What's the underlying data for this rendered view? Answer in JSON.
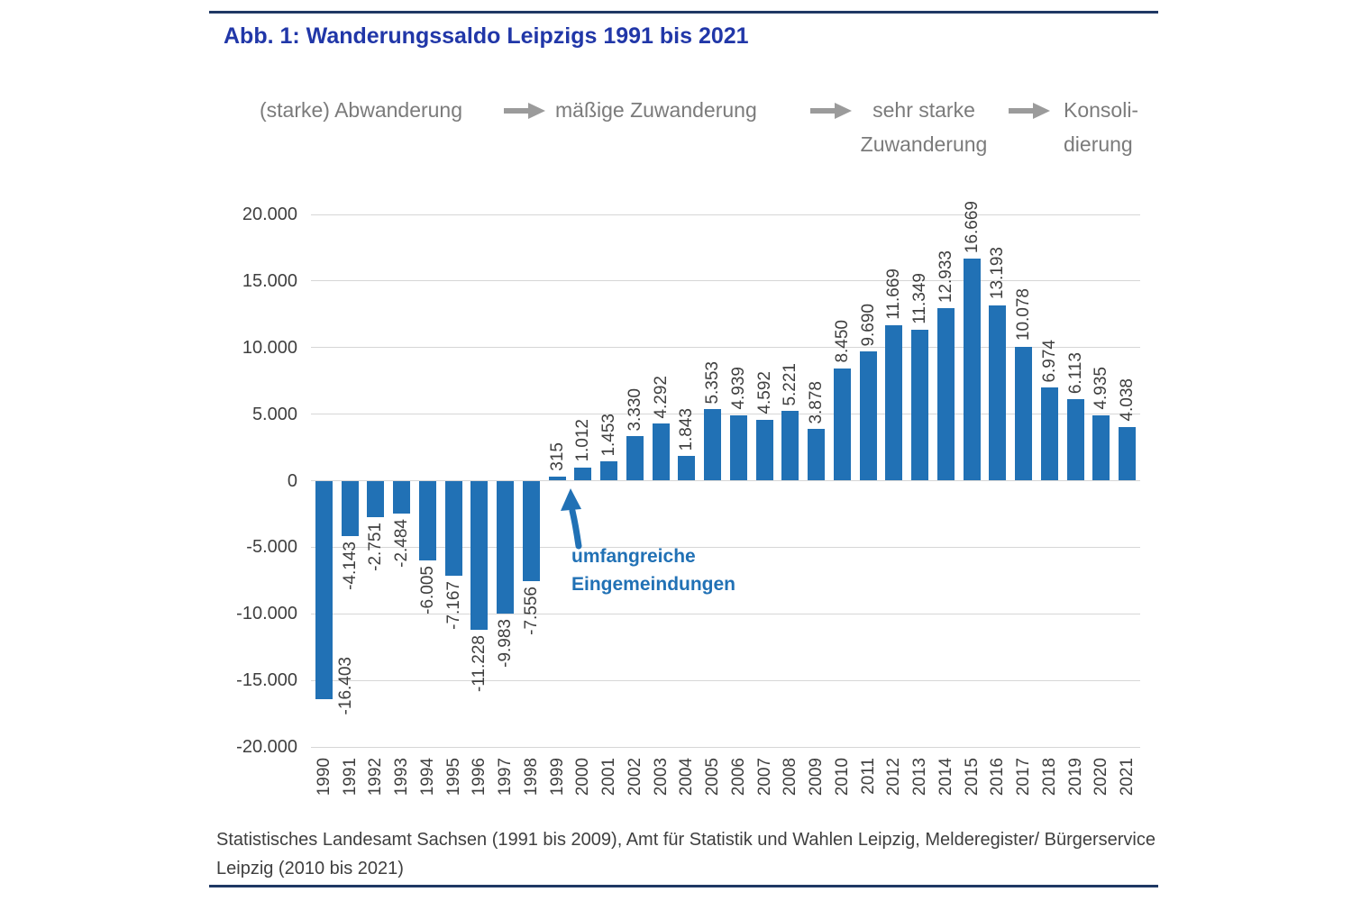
{
  "figure": {
    "title": "Abb. 1: Wanderungssaldo Leipzigs 1991 bis 2021",
    "source_line1": "Statistisches Landesamt Sachsen (1991 bis 2009), Amt für Statistik und Wahlen Leipzig, Melderegister/ Bürgerservice",
    "source_line2": "Leipzig (2010 bis 2021)"
  },
  "phases": [
    {
      "label": "(starke) Abwanderung"
    },
    {
      "label": "mäßige Zuwanderung"
    },
    {
      "line1": "sehr starke",
      "line2": "Zuwanderung"
    },
    {
      "line1": "Konsoli-",
      "line2": "dierung"
    }
  ],
  "chart_data": {
    "type": "bar",
    "title": "Abb. 1: Wanderungssaldo Leipzigs 1991 bis 2021",
    "xlabel": "",
    "ylabel": "",
    "ylim": [
      -20000,
      20000
    ],
    "grid": true,
    "legend": "none",
    "bar_color": "#2171B5",
    "grid_color": "#D6D6D6",
    "categories": [
      "1990",
      "1991",
      "1992",
      "1993",
      "1994",
      "1995",
      "1996",
      "1997",
      "1998",
      "1999",
      "2000",
      "2001",
      "2002",
      "2003",
      "2004",
      "2005",
      "2006",
      "2007",
      "2008",
      "2009",
      "2010",
      "2011",
      "2012",
      "2013",
      "2014",
      "2015",
      "2016",
      "2017",
      "2018",
      "2019",
      "2020",
      "2021"
    ],
    "values": [
      -16403,
      -4143,
      -2751,
      -2484,
      -6005,
      -7167,
      -11228,
      -9983,
      -7556,
      315,
      1012,
      1453,
      3330,
      4292,
      1843,
      5353,
      4939,
      4592,
      5221,
      3878,
      8450,
      9690,
      11669,
      11349,
      12933,
      16669,
      13193,
      10078,
      6974,
      6113,
      4935,
      4038
    ],
    "labels": [
      "-16.403",
      "-4.143",
      "-2.751",
      "-2.484",
      "-6.005",
      "-7.167",
      "-11.228",
      "-9.983",
      "-7.556",
      "315",
      "1.012",
      "1.453",
      "3.330",
      "4.292",
      "1.843",
      "5.353",
      "4.939",
      "4.592",
      "5.221",
      "3.878",
      "8.450",
      "9.690",
      "11.669",
      "11.349",
      "12.933",
      "16.669",
      "13.193",
      "10.078",
      "6.974",
      "6.113",
      "4.935",
      "4.038"
    ],
    "y_ticks": [
      "20.000",
      "15.000",
      "10.000",
      "5.000",
      "0",
      "-5.000",
      "-10.000",
      "-15.000",
      "-20.000"
    ],
    "annotation": {
      "line1": "umfangreiche",
      "line2": "Eingemeindungen",
      "target_year": "1999",
      "color": "#2171B5"
    }
  }
}
